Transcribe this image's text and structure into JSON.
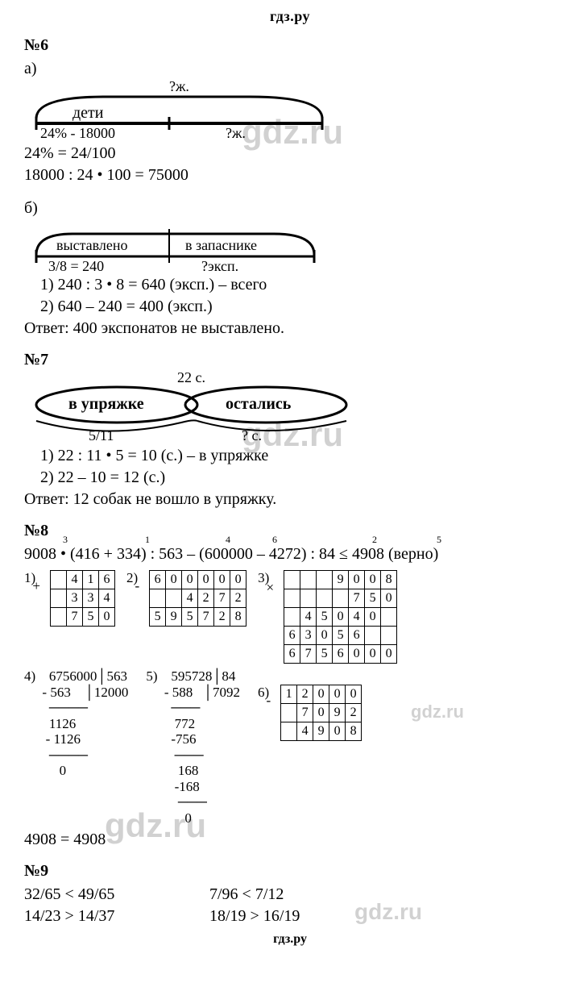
{
  "site_brand": "гдз.ру",
  "p6": {
    "label": "№6",
    "part_a": "а)",
    "diagram_a": {
      "top": "?ж.",
      "seg1_top": "дети",
      "seg1_bottom": "24% - 18000",
      "seg2_bottom": "?ж.",
      "bar_color": "#000000",
      "bracket_color": "#000000"
    },
    "a_line1": "24% = 24/100",
    "a_line2": "18000 : 24 • 100 = 75000",
    "part_b": "б)",
    "diagram_b": {
      "seg1_top": "выставлено",
      "seg2_top": "в запаснике",
      "seg1_bottom": "3/8 = 240",
      "seg2_bottom": "?эксп."
    },
    "b_line1": "1) 240 : 3 • 8 = 640 (эксп.) – всего",
    "b_line2": "2) 640 – 240 = 400 (эксп.)",
    "b_answer": "Ответ: 400 экспонатов не выставлено."
  },
  "p7": {
    "label": "№7",
    "diagram": {
      "top": "22 с.",
      "seg1": "в упряжке",
      "seg2": "остались",
      "seg1_bottom": "5/11",
      "seg2_bottom": "? с."
    },
    "line1": "1) 22 : 11 • 5 = 10 (с.) – в упряжке",
    "line2": "2) 22 – 10 = 12 (с.)",
    "answer": "Ответ: 12 собак не вошло в упряжку."
  },
  "p8": {
    "label": "№8",
    "marks": [
      "3",
      "1",
      "4",
      "6",
      "2",
      "5"
    ],
    "mark_x": [
      48,
      150,
      250,
      308,
      432,
      512
    ],
    "expr": "9008 • (416 + 334) : 563 – (600000 – 4272) : 84 ≤ 4908 (верно)",
    "calc1": {
      "label": "1)",
      "op": "+",
      "rows": [
        [
          "",
          "4",
          "1",
          "6"
        ],
        [
          "",
          "3",
          "3",
          "4"
        ],
        [
          "",
          "7",
          "5",
          "0"
        ]
      ]
    },
    "calc2": {
      "label": "2)",
      "op": "-",
      "rows": [
        [
          "6",
          "0",
          "0",
          "0",
          "0",
          "0"
        ],
        [
          "",
          "",
          "4",
          "2",
          "7",
          "2"
        ],
        [
          "5",
          "9",
          "5",
          "7",
          "2",
          "8"
        ]
      ]
    },
    "calc3": {
      "label": "3)",
      "op": "×",
      "rows": [
        [
          "",
          "",
          "",
          "9",
          "0",
          "0",
          "8"
        ],
        [
          "",
          "",
          "",
          "",
          "7",
          "5",
          "0"
        ],
        [
          "",
          "4",
          "5",
          "0",
          "4",
          "0",
          ""
        ],
        [
          "6",
          "3",
          "0",
          "5",
          "6",
          "",
          ""
        ],
        [
          "6",
          "7",
          "5",
          "6",
          "0",
          "0",
          "0"
        ]
      ]
    },
    "calc4": {
      "label": "4)",
      "text": "  6756000│563\n- 563    │12000\n  ────\n  1126\n - 1126\n  ────\n     0"
    },
    "calc5": {
      "label": "5)",
      "text": "  595728│84\n- 588   │7092\n  ───\n   772\n  -756\n   ───\n    168\n   -168\n    ───\n      0"
    },
    "calc6": {
      "label": "6)",
      "op": "-",
      "rows": [
        [
          "1",
          "2",
          "0",
          "0",
          "0"
        ],
        [
          "",
          "7",
          "0",
          "9",
          "2"
        ],
        [
          "",
          "4",
          "9",
          "0",
          "8"
        ]
      ]
    },
    "result": "4908 = 4908"
  },
  "p9": {
    "label": "№9",
    "cells": [
      "32/65 < 49/65",
      "7/96 < 7/12",
      "14/23 > 14/37",
      "18/19 > 16/19"
    ]
  },
  "watermark": "gdz.ru"
}
